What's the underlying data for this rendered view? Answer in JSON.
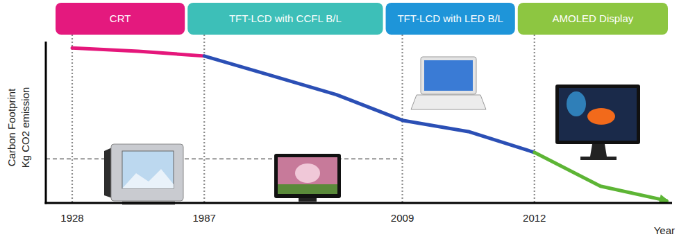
{
  "chart_data": {
    "type": "line",
    "ylabel": [
      "Carbon Footprint",
      "Kg CO2 emission"
    ],
    "xlabel": "Year",
    "categories": [
      "1928",
      null,
      "1987",
      null,
      null,
      "2009",
      null,
      "2012",
      null,
      null
    ],
    "series": [
      {
        "color": "#e5177b",
        "values": [
          96,
          94,
          91,
          null,
          null,
          null,
          null,
          null,
          null,
          null
        ]
      },
      {
        "color": "#2b4fb5",
        "values": [
          null,
          null,
          91,
          79,
          67,
          51,
          44,
          31,
          null,
          null
        ]
      },
      {
        "color": "#5db535",
        "values": [
          null,
          null,
          null,
          null,
          null,
          null,
          null,
          31,
          10,
          1
        ],
        "marker": "arrow"
      }
    ],
    "ylim": [
      0,
      100
    ],
    "reference_value": 27,
    "eras": [
      {
        "label": "CRT",
        "color": "#e4197e"
      },
      {
        "label": "TFT-LCD with CCFL B/L",
        "color": "#3dbfb8"
      },
      {
        "label": "TFT-LCD with LED B/L",
        "color": "#1e95d9"
      },
      {
        "label": "AMOLED Display",
        "color": "#8dc641"
      }
    ],
    "grid": true,
    "tick_labels": "x"
  }
}
